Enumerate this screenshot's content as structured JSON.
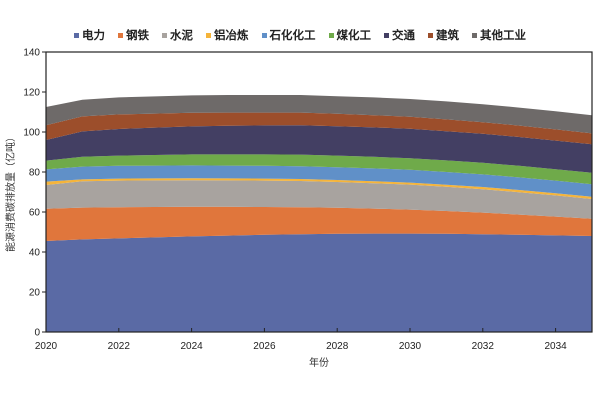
{
  "chart_data": {
    "type": "area",
    "stacked": true,
    "title": "",
    "xlabel": "年份",
    "ylabel": "能源消费碳排放量（亿吨）",
    "xlim": [
      2020,
      2035
    ],
    "ylim": [
      0,
      140
    ],
    "x_ticks": [
      "2020",
      "2022",
      "2024",
      "2026",
      "2028",
      "2030",
      "2032",
      "2034"
    ],
    "y_ticks": [
      "0",
      "20",
      "40",
      "60",
      "80",
      "100",
      "120",
      "140"
    ],
    "grid": false,
    "legend_position": "top",
    "x": [
      2020,
      2021,
      2022,
      2023,
      2024,
      2025,
      2026,
      2027,
      2028,
      2029,
      2030,
      2031,
      2032,
      2033,
      2034,
      2035
    ],
    "series": [
      {
        "name": "电力",
        "color": "#5a6aa5",
        "values": [
          45.5,
          46.3,
          46.8,
          47.3,
          47.8,
          48.2,
          48.6,
          48.9,
          49.1,
          49.2,
          49.2,
          49.1,
          48.9,
          48.6,
          48.3,
          48.0
        ]
      },
      {
        "name": "钢铁",
        "color": "#e0763c",
        "values": [
          16.1,
          15.9,
          15.6,
          15.2,
          14.8,
          14.4,
          13.9,
          13.5,
          13.0,
          12.5,
          12.0,
          11.4,
          10.8,
          10.1,
          9.4,
          8.6
        ]
      },
      {
        "name": "水泥",
        "color": "#a8a39f",
        "values": [
          11.9,
          13.2,
          13.3,
          13.3,
          13.3,
          13.2,
          13.2,
          13.1,
          12.9,
          12.7,
          12.5,
          12.1,
          11.7,
          11.2,
          10.6,
          9.9
        ]
      },
      {
        "name": "铝冶炼",
        "color": "#f5b43a",
        "values": [
          1.7,
          0.9,
          1.0,
          1.0,
          1.0,
          1.0,
          1.0,
          1.0,
          1.0,
          1.0,
          1.0,
          1.0,
          1.1,
          1.1,
          1.1,
          1.1
        ]
      },
      {
        "name": "石化化工",
        "color": "#6090c8",
        "values": [
          6.1,
          6.4,
          6.4,
          6.4,
          6.4,
          6.4,
          6.4,
          6.4,
          6.4,
          6.4,
          6.4,
          6.4,
          6.3,
          6.3,
          6.3,
          6.3
        ]
      },
      {
        "name": "煤化工",
        "color": "#6faa4a",
        "values": [
          4.4,
          4.9,
          5.1,
          5.3,
          5.5,
          5.6,
          5.7,
          5.8,
          5.8,
          5.8,
          5.8,
          5.8,
          5.8,
          5.8,
          5.7,
          5.7
        ]
      },
      {
        "name": "交通",
        "color": "#433f63",
        "values": [
          10.3,
          12.7,
          13.3,
          13.7,
          14.0,
          14.3,
          14.5,
          14.7,
          14.7,
          14.7,
          14.7,
          14.6,
          14.5,
          14.4,
          14.3,
          14.3
        ]
      },
      {
        "name": "建筑",
        "color": "#9c4e2b",
        "values": [
          7.4,
          7.5,
          7.3,
          7.0,
          6.8,
          6.6,
          6.4,
          6.3,
          6.2,
          6.1,
          6.0,
          5.9,
          5.8,
          5.7,
          5.6,
          5.4
        ]
      },
      {
        "name": "其他工业",
        "color": "#6e6a69",
        "values": [
          9.1,
          8.3,
          8.5,
          8.6,
          8.7,
          8.8,
          8.8,
          8.8,
          8.8,
          8.9,
          8.9,
          9.0,
          9.0,
          9.0,
          9.1,
          9.1
        ]
      }
    ]
  }
}
